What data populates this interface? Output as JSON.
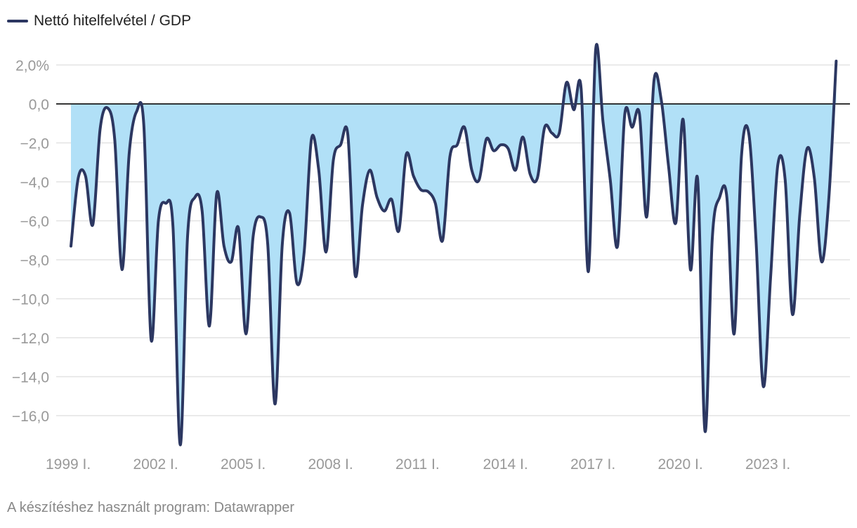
{
  "legend": {
    "label": "Nettó hitelfelvétel / GDP"
  },
  "footer": {
    "credit": "A készítéshez használt program: Datawrapper"
  },
  "colors": {
    "line": "#2c3761",
    "fill": "#b1e0f7",
    "grid": "#e3e3e3",
    "zero": "#1a1a1a",
    "tick_text": "#999999"
  },
  "chart_data": {
    "type": "area",
    "title": "",
    "xlabel": "",
    "ylabel": "",
    "ylim": [
      -17.5,
      2.8
    ],
    "y_ticks": [
      {
        "value": 2,
        "label": "2,0%"
      },
      {
        "value": 0,
        "label": "0,0"
      },
      {
        "value": -2,
        "label": "−2,0"
      },
      {
        "value": -4,
        "label": "−4,0"
      },
      {
        "value": -6,
        "label": "−6,0"
      },
      {
        "value": -8,
        "label": "−8,0"
      },
      {
        "value": -10,
        "label": "−10,0"
      },
      {
        "value": -12,
        "label": "−12,0"
      },
      {
        "value": -14,
        "label": "−14,0"
      },
      {
        "value": -16,
        "label": "−16,0"
      }
    ],
    "x_ticks": [
      {
        "value": 1999.0,
        "label": "1999 I."
      },
      {
        "value": 2002.0,
        "label": "2002 I."
      },
      {
        "value": 2005.0,
        "label": "2005 I."
      },
      {
        "value": 2008.0,
        "label": "2008 I."
      },
      {
        "value": 2011.0,
        "label": "2011 I."
      },
      {
        "value": 2014.0,
        "label": "2014 I."
      },
      {
        "value": 2017.0,
        "label": "2017 I."
      },
      {
        "value": 2020.0,
        "label": "2020 I."
      },
      {
        "value": 2023.0,
        "label": "2023 I."
      }
    ],
    "xlim": [
      1998.9,
      2025.6
    ],
    "series": [
      {
        "name": "Nettó hitelfelvétel / GDP",
        "x": [
          1999.0,
          1999.25,
          1999.5,
          1999.75,
          2000.0,
          2000.25,
          2000.5,
          2000.75,
          2001.0,
          2001.25,
          2001.5,
          2001.75,
          2002.0,
          2002.25,
          2002.5,
          2002.75,
          2003.0,
          2003.25,
          2003.5,
          2003.75,
          2004.0,
          2004.25,
          2004.5,
          2004.75,
          2005.0,
          2005.25,
          2005.5,
          2005.75,
          2006.0,
          2006.25,
          2006.5,
          2006.75,
          2007.0,
          2007.25,
          2007.5,
          2007.75,
          2008.0,
          2008.25,
          2008.5,
          2008.75,
          2009.0,
          2009.25,
          2009.5,
          2009.75,
          2010.0,
          2010.25,
          2010.5,
          2010.75,
          2011.0,
          2011.25,
          2011.5,
          2011.75,
          2012.0,
          2012.25,
          2012.5,
          2012.75,
          2013.0,
          2013.25,
          2013.5,
          2013.75,
          2014.0,
          2014.25,
          2014.5,
          2014.75,
          2015.0,
          2015.25,
          2015.5,
          2015.75,
          2016.0,
          2016.25,
          2016.5,
          2016.75,
          2017.0,
          2017.25,
          2017.5,
          2017.75,
          2018.0,
          2018.25,
          2018.5,
          2018.75,
          2019.0,
          2019.25,
          2019.5,
          2019.75,
          2020.0,
          2020.25,
          2020.5,
          2020.75,
          2021.0,
          2021.25,
          2021.5,
          2021.75,
          2022.0,
          2022.25,
          2022.5,
          2022.75,
          2023.0,
          2023.25,
          2023.5,
          2023.75,
          2024.0,
          2024.25,
          2024.5,
          2024.75,
          2025.0,
          2025.25
        ],
        "values": [
          -7.3,
          -3.8,
          -3.7,
          -6.2,
          -1.3,
          -0.2,
          -1.8,
          -8.5,
          -2.5,
          -0.4,
          -1.1,
          -12.1,
          -6.0,
          -5.1,
          -6.3,
          -17.5,
          -6.8,
          -4.8,
          -5.5,
          -11.4,
          -4.6,
          -7.3,
          -8.1,
          -6.4,
          -11.8,
          -6.8,
          -5.8,
          -7.2,
          -15.4,
          -7.2,
          -5.6,
          -9.2,
          -7.6,
          -1.8,
          -3.4,
          -7.6,
          -2.9,
          -2.1,
          -1.6,
          -8.8,
          -5.2,
          -3.4,
          -4.8,
          -5.5,
          -4.9,
          -6.5,
          -2.6,
          -3.7,
          -4.4,
          -4.5,
          -5.1,
          -7.0,
          -2.7,
          -2.1,
          -1.2,
          -3.4,
          -3.9,
          -1.8,
          -2.4,
          -2.1,
          -2.3,
          -3.4,
          -1.7,
          -3.6,
          -3.8,
          -1.2,
          -1.5,
          -1.5,
          1.1,
          -0.3,
          0.8,
          -8.6,
          2.8,
          -0.9,
          -3.9,
          -7.3,
          -0.5,
          -1.2,
          -0.5,
          -5.8,
          1.2,
          0.2,
          -3.2,
          -6.1,
          -0.8,
          -8.5,
          -3.9,
          -16.8,
          -6.9,
          -4.8,
          -4.8,
          -11.8,
          -2.7,
          -1.5,
          -7.0,
          -14.5,
          -8.9,
          -3.1,
          -3.9,
          -10.8,
          -5.7,
          -2.3,
          -3.8,
          -8.1,
          -4.8,
          2.2
        ]
      }
    ]
  }
}
